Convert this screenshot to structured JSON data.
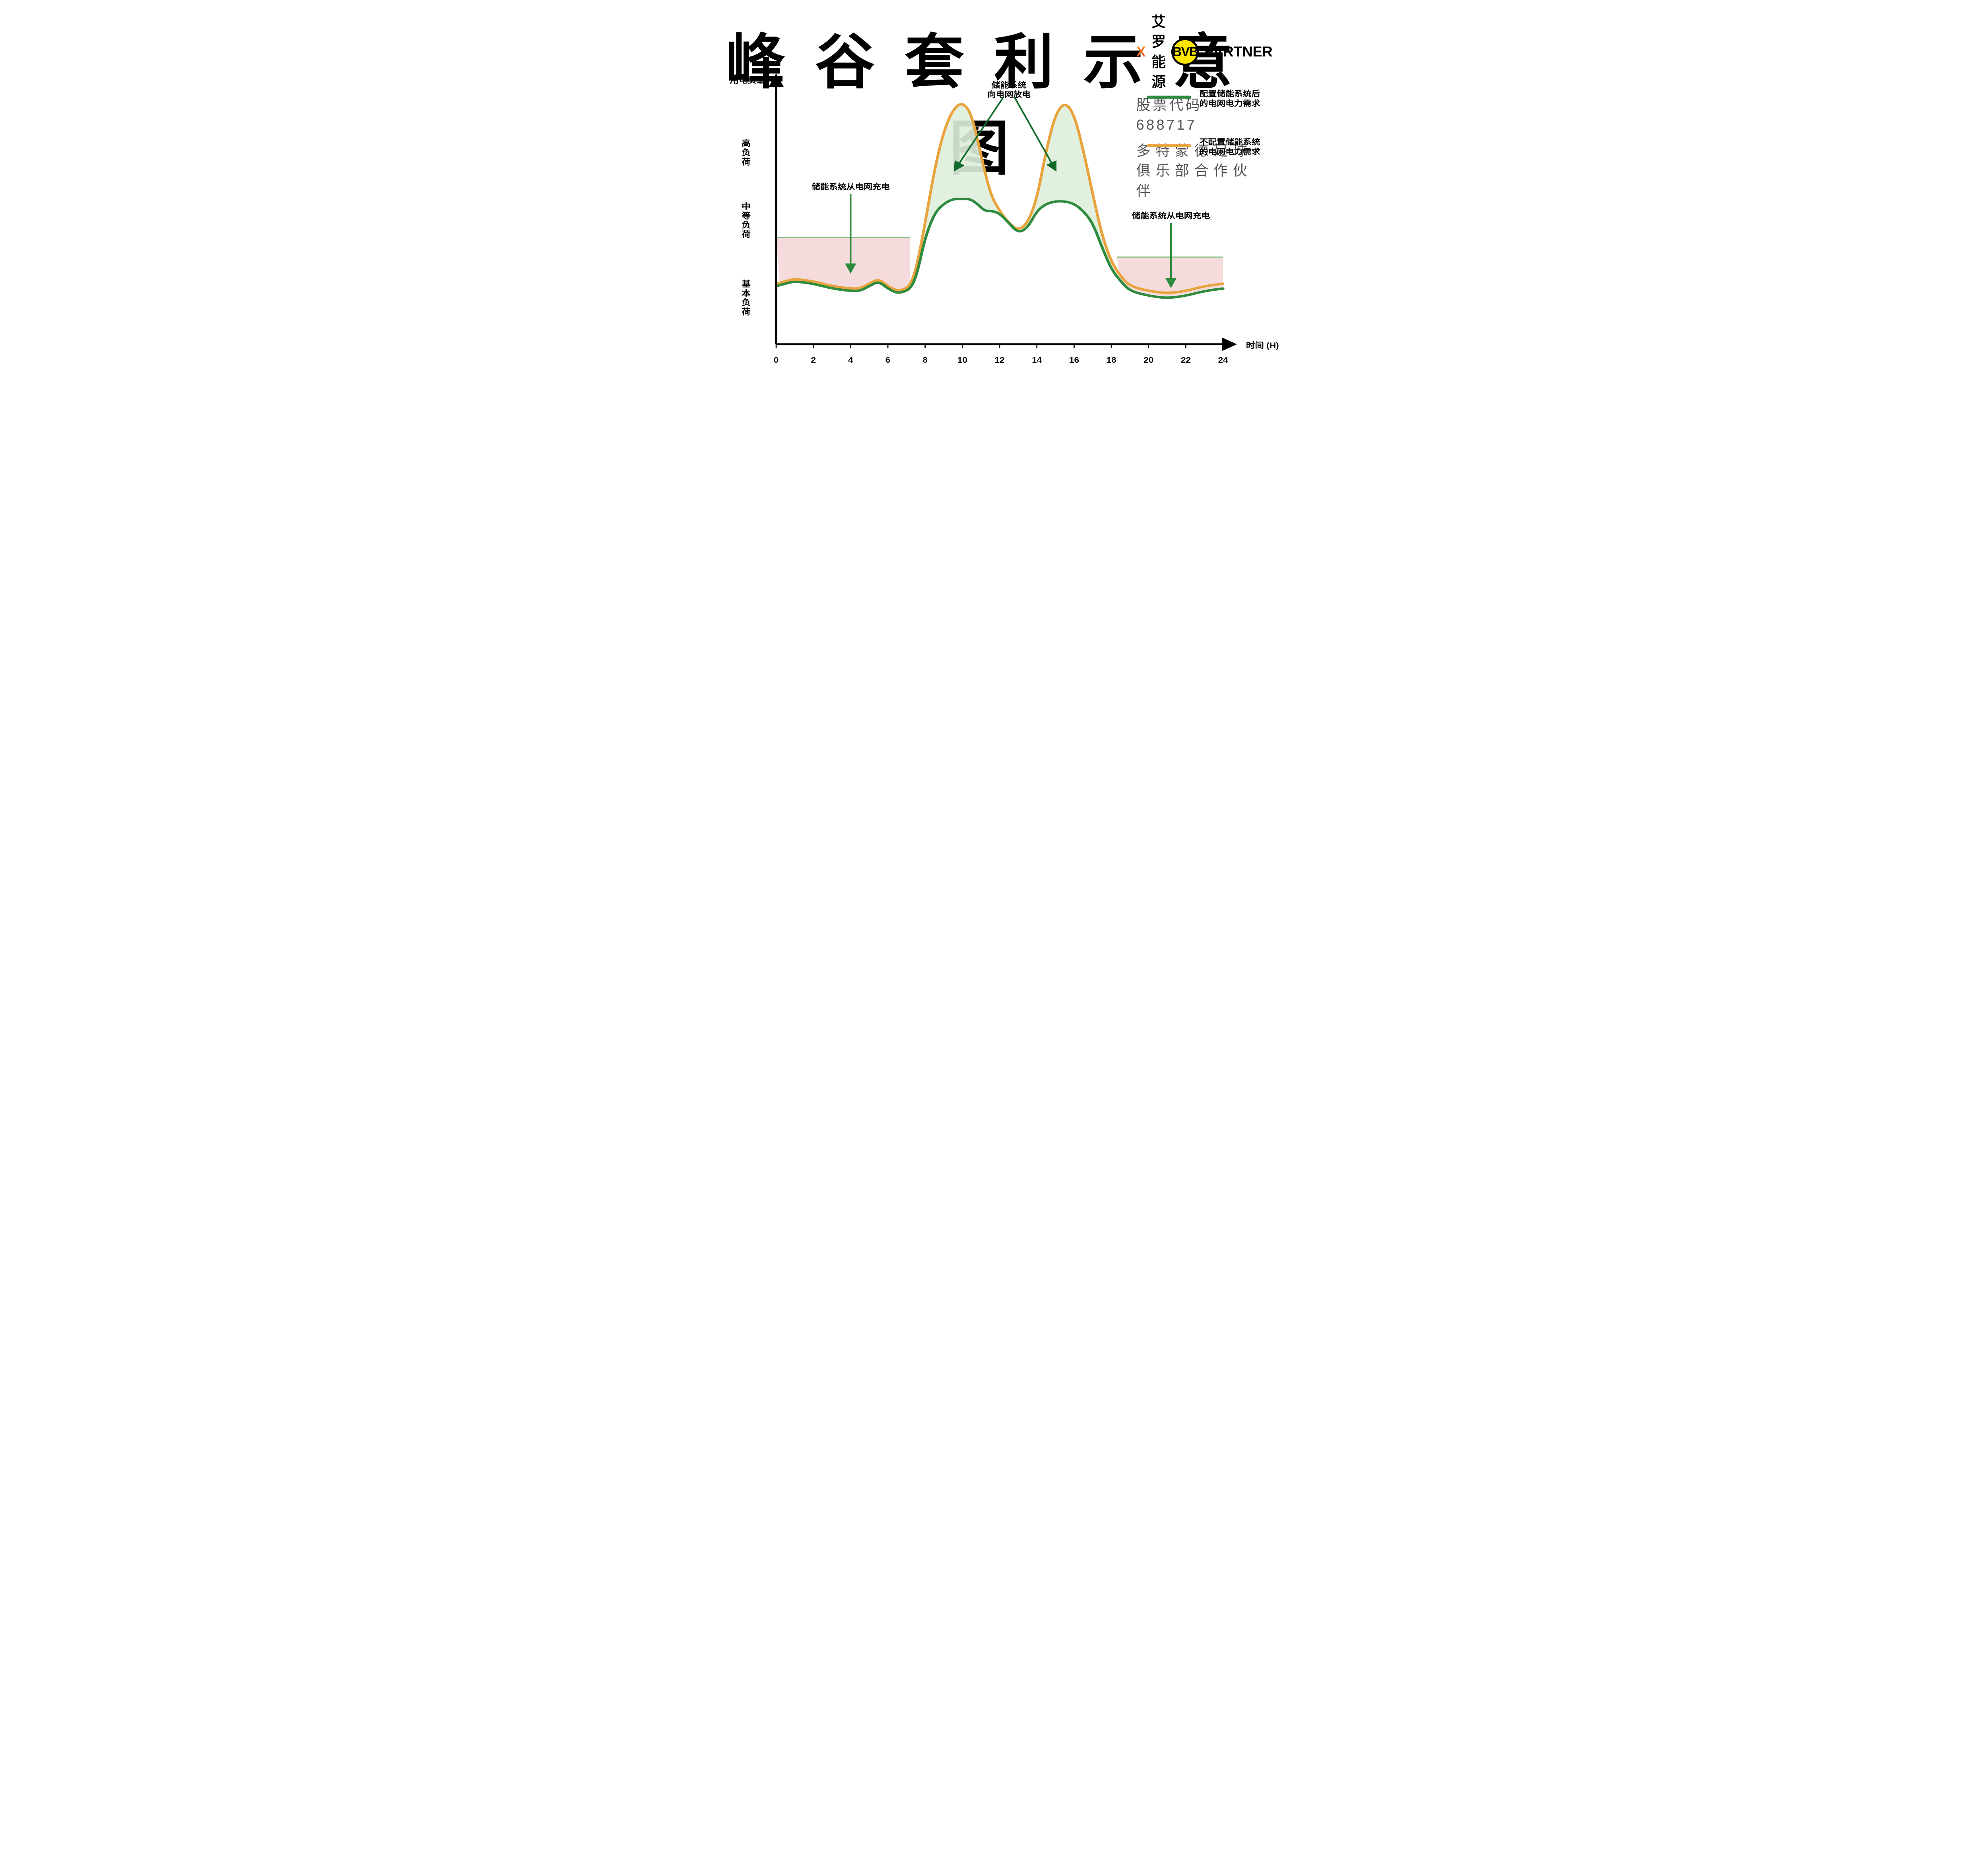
{
  "title": "峰谷套利示意图",
  "title_fontsize_vw": 3.0,
  "logo": {
    "brand1a": "X",
    "brand1b": "艾罗能源",
    "brand1_sub": "股票代码 688717",
    "bvb": "BVB",
    "partner": "PARTNER",
    "tagline": "多特蒙德足球俱乐部合作伙伴"
  },
  "chart": {
    "background_color": "#ffffff",
    "axis_color": "#000000",
    "axis_stroke_width": 4,
    "arrowhead_size": 14,
    "x_title": "时间 (H)",
    "y_title": "用电负载",
    "x_ticks": [
      "0",
      "2",
      "4",
      "6",
      "8",
      "10",
      "12",
      "14",
      "16",
      "18",
      "20",
      "22",
      "24"
    ],
    "x_tick_step_hours": 2,
    "x_range_hours": [
      0,
      24
    ],
    "tick_fontsize_vw": 1.5,
    "axis_title_fontsize_vw": 1.5,
    "y_categories": [
      {
        "label": "高负荷",
        "lines": [
          "高",
          "负",
          "荷"
        ],
        "y_center": 0.78
      },
      {
        "label": "中等负荷",
        "lines": [
          "中",
          "等",
          "负",
          "荷"
        ],
        "y_center": 0.5
      },
      {
        "label": "基本负荷",
        "lines": [
          "基",
          "本",
          "负",
          "荷"
        ],
        "y_center": 0.18
      }
    ],
    "series": {
      "no_storage": {
        "label": "不配置储能系统的电网电力需求",
        "color": "#e8a33d",
        "stroke_width": 5,
        "points_hours_load": [
          [
            0,
            0.25
          ],
          [
            0.5,
            0.26
          ],
          [
            1,
            0.27
          ],
          [
            2,
            0.26
          ],
          [
            3,
            0.24
          ],
          [
            4,
            0.23
          ],
          [
            4.5,
            0.23
          ],
          [
            5,
            0.25
          ],
          [
            5.5,
            0.27
          ],
          [
            6,
            0.24
          ],
          [
            6.5,
            0.22
          ],
          [
            7,
            0.23
          ],
          [
            7.3,
            0.26
          ],
          [
            7.6,
            0.34
          ],
          [
            8,
            0.5
          ],
          [
            8.5,
            0.72
          ],
          [
            9,
            0.88
          ],
          [
            9.5,
            0.97
          ],
          [
            10,
            1.0
          ],
          [
            10.5,
            0.95
          ],
          [
            11,
            0.78
          ],
          [
            11.5,
            0.62
          ],
          [
            12,
            0.55
          ],
          [
            12.5,
            0.5
          ],
          [
            13,
            0.47
          ],
          [
            13.5,
            0.5
          ],
          [
            14,
            0.6
          ],
          [
            14.5,
            0.8
          ],
          [
            15,
            0.95
          ],
          [
            15.5,
            1.0
          ],
          [
            16,
            0.95
          ],
          [
            16.5,
            0.8
          ],
          [
            17,
            0.62
          ],
          [
            17.5,
            0.45
          ],
          [
            18,
            0.34
          ],
          [
            18.5,
            0.28
          ],
          [
            19,
            0.24
          ],
          [
            20,
            0.22
          ],
          [
            21,
            0.21
          ],
          [
            22,
            0.22
          ],
          [
            23,
            0.24
          ],
          [
            24,
            0.25
          ]
        ]
      },
      "with_storage": {
        "label": "配置储能系统后的电网电力需求",
        "color": "#2e8b3d",
        "stroke_width": 5,
        "points_hours_load": [
          [
            0,
            0.24
          ],
          [
            0.5,
            0.25
          ],
          [
            1,
            0.26
          ],
          [
            2,
            0.25
          ],
          [
            3,
            0.23
          ],
          [
            4,
            0.22
          ],
          [
            4.5,
            0.22
          ],
          [
            5,
            0.24
          ],
          [
            5.5,
            0.26
          ],
          [
            6,
            0.23
          ],
          [
            6.5,
            0.21
          ],
          [
            7,
            0.22
          ],
          [
            7.3,
            0.24
          ],
          [
            7.6,
            0.3
          ],
          [
            8,
            0.44
          ],
          [
            8.5,
            0.54
          ],
          [
            9,
            0.58
          ],
          [
            9.5,
            0.6
          ],
          [
            10,
            0.6
          ],
          [
            10.4,
            0.6
          ],
          [
            10.8,
            0.58
          ],
          [
            11.2,
            0.55
          ],
          [
            11.6,
            0.55
          ],
          [
            12,
            0.54
          ],
          [
            12.5,
            0.5
          ],
          [
            13,
            0.46
          ],
          [
            13.5,
            0.48
          ],
          [
            14,
            0.55
          ],
          [
            14.5,
            0.58
          ],
          [
            15,
            0.59
          ],
          [
            15.5,
            0.59
          ],
          [
            16,
            0.58
          ],
          [
            16.5,
            0.55
          ],
          [
            17,
            0.5
          ],
          [
            17.5,
            0.4
          ],
          [
            18,
            0.31
          ],
          [
            18.5,
            0.26
          ],
          [
            19,
            0.22
          ],
          [
            20,
            0.2
          ],
          [
            21,
            0.19
          ],
          [
            22,
            0.2
          ],
          [
            23,
            0.22
          ],
          [
            24,
            0.23
          ]
        ]
      }
    },
    "charge_fill": {
      "color": "#f4d7d7",
      "opacity": 0.9,
      "regions": [
        {
          "x_hours": [
            0,
            7.2
          ],
          "top_level": 0.44,
          "top_hline_color": "#6fb96f",
          "top_hline_width": 2
        },
        {
          "x_hours": [
            18.3,
            24
          ],
          "top_level": 0.36,
          "top_hline_color": "#6fb96f",
          "top_hline_width": 2
        }
      ]
    },
    "discharge_fill": {
      "color": "#dfeedd",
      "opacity": 0.9,
      "region_x_hours": [
        7.4,
        18.0
      ]
    },
    "annotations": [
      {
        "text": "储能系统从电网充电",
        "x_hour": 4.0,
        "y_level": 0.64,
        "arrow_to": {
          "x_hour": 4.0,
          "y_level": 0.3
        },
        "arrow_color": "#2e8b3d",
        "fontsize_vw": 1.45
      },
      {
        "text": "储能系统从电网充电",
        "x_hour": 21.2,
        "y_level": 0.52,
        "arrow_to": {
          "x_hour": 21.2,
          "y_level": 0.24
        },
        "arrow_color": "#2e8b3d",
        "fontsize_vw": 1.45
      },
      {
        "text_lines": [
          "储能系统",
          "向电网放电"
        ],
        "x_hour": 12.5,
        "y_level": 1.04,
        "arrows_to": [
          {
            "x_hour": 9.6,
            "y_level": 0.72
          },
          {
            "x_hour": 15.0,
            "y_level": 0.72
          }
        ],
        "arrow_color": "#0f6b2a",
        "fontsize_vw": 1.45
      }
    ],
    "legend": {
      "x_hour": 20.0,
      "y_levels": [
        1.02,
        0.82
      ],
      "items": [
        {
          "color": "#2e8b3d",
          "lines": [
            "配置储能系统后",
            "的电网电力需求"
          ]
        },
        {
          "color": "#e8a33d",
          "lines": [
            "不配置储能系统",
            "的电网电力需求"
          ]
        }
      ],
      "swatch_length_hours": 2.2,
      "swatch_stroke_width": 6,
      "fontsize_vw": 1.45,
      "text_color": "#000000"
    }
  }
}
